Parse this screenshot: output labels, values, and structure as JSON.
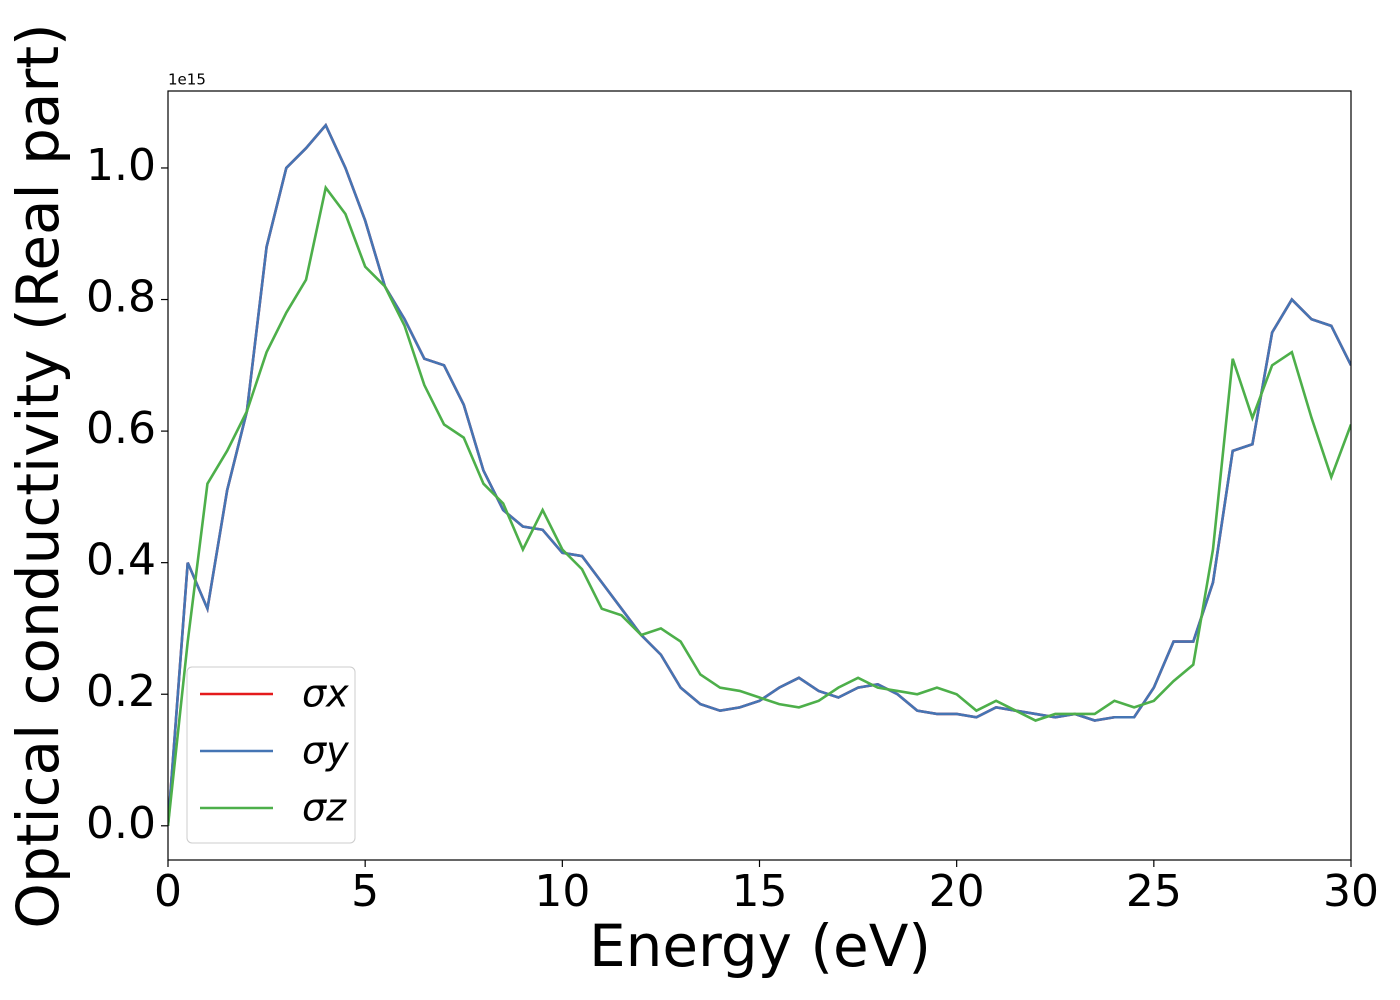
{
  "chart_data": {
    "type": "line",
    "xlabel": "Energy (eV)",
    "ylabel": "Optical conductivity (Real part)",
    "y_offset_label": "1e15",
    "x": [
      0,
      0.5,
      1,
      1.5,
      2,
      2.5,
      3,
      3.5,
      4,
      4.5,
      5,
      5.5,
      6,
      6.5,
      7,
      7.5,
      8,
      8.5,
      9,
      9.5,
      10,
      10.5,
      11,
      11.5,
      12,
      12.5,
      13,
      13.5,
      14,
      14.5,
      15,
      15.5,
      16,
      16.5,
      17,
      17.5,
      18,
      18.5,
      19,
      19.5,
      20,
      20.5,
      21,
      21.5,
      22,
      22.5,
      23,
      23.5,
      24,
      24.5,
      25,
      25.5,
      26,
      26.5,
      27,
      27.5,
      28,
      28.5,
      29,
      29.5,
      30
    ],
    "series": [
      {
        "name": "σx",
        "color": "#e41a1c",
        "values": [
          0,
          0.4,
          0.33,
          0.51,
          0.63,
          0.88,
          1.0,
          1.03,
          1.065,
          1.0,
          0.92,
          0.82,
          0.77,
          0.71,
          0.7,
          0.64,
          0.54,
          0.48,
          0.455,
          0.45,
          0.415,
          0.41,
          0.37,
          0.33,
          0.29,
          0.26,
          0.21,
          0.185,
          0.175,
          0.18,
          0.19,
          0.21,
          0.225,
          0.205,
          0.195,
          0.21,
          0.215,
          0.2,
          0.175,
          0.17,
          0.17,
          0.165,
          0.18,
          0.175,
          0.17,
          0.165,
          0.17,
          0.16,
          0.165,
          0.165,
          0.21,
          0.28,
          0.28,
          0.37,
          0.57,
          0.58,
          0.75,
          0.8,
          0.77,
          0.76,
          0.7
        ]
      },
      {
        "name": "σy",
        "color": "#4575b4",
        "values": [
          0,
          0.4,
          0.33,
          0.51,
          0.63,
          0.88,
          1.0,
          1.03,
          1.065,
          1.0,
          0.92,
          0.82,
          0.77,
          0.71,
          0.7,
          0.64,
          0.54,
          0.48,
          0.455,
          0.45,
          0.415,
          0.41,
          0.37,
          0.33,
          0.29,
          0.26,
          0.21,
          0.185,
          0.175,
          0.18,
          0.19,
          0.21,
          0.225,
          0.205,
          0.195,
          0.21,
          0.215,
          0.2,
          0.175,
          0.17,
          0.17,
          0.165,
          0.18,
          0.175,
          0.17,
          0.165,
          0.17,
          0.16,
          0.165,
          0.165,
          0.21,
          0.28,
          0.28,
          0.37,
          0.57,
          0.58,
          0.75,
          0.8,
          0.77,
          0.76,
          0.7
        ]
      },
      {
        "name": "σz",
        "color": "#4daf4a",
        "values": [
          0,
          0.28,
          0.52,
          0.57,
          0.63,
          0.72,
          0.78,
          0.83,
          0.97,
          0.93,
          0.85,
          0.82,
          0.76,
          0.67,
          0.61,
          0.59,
          0.52,
          0.49,
          0.42,
          0.48,
          0.42,
          0.39,
          0.33,
          0.32,
          0.29,
          0.3,
          0.28,
          0.23,
          0.21,
          0.205,
          0.195,
          0.185,
          0.18,
          0.19,
          0.21,
          0.225,
          0.21,
          0.205,
          0.2,
          0.21,
          0.2,
          0.175,
          0.19,
          0.175,
          0.16,
          0.17,
          0.17,
          0.17,
          0.19,
          0.18,
          0.19,
          0.22,
          0.245,
          0.42,
          0.71,
          0.62,
          0.7,
          0.72,
          0.62,
          0.53,
          0.61
        ]
      }
    ],
    "xlim": [
      0,
      30
    ],
    "xticks": [
      0,
      5,
      10,
      15,
      20,
      25,
      30
    ],
    "ylim": [
      -0.052,
      1.117
    ],
    "yticks": [
      {
        "value": 0,
        "label": "0.0"
      },
      0.2,
      0.4,
      0.6,
      0.8,
      {
        "value": 1,
        "label": "1.0"
      }
    ],
    "legend": "lower left",
    "grid": false
  }
}
